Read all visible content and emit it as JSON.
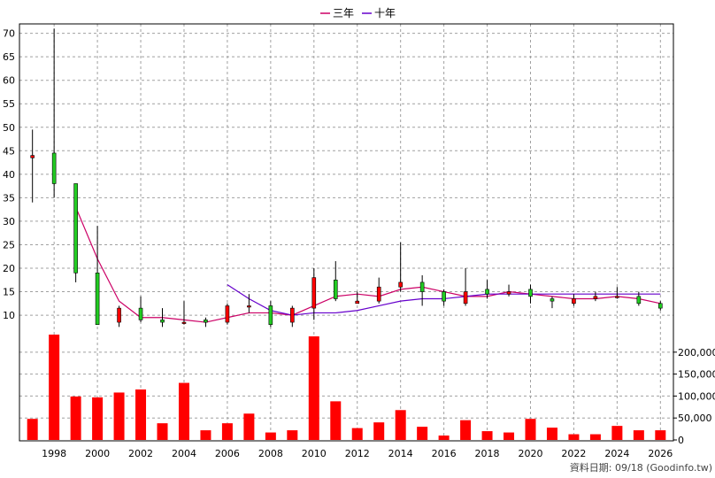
{
  "legend": [
    {
      "label": "三年",
      "color": "#cc0066"
    },
    {
      "label": "十年",
      "color": "#6600cc"
    }
  ],
  "footer": "資料日期: 09/18 (Goodinfo.tw)",
  "chart_data": [
    {
      "type": "candlestick",
      "x_range": [
        1996.4,
        2026.6
      ],
      "y_range": [
        7,
        72
      ],
      "y_ticks": [
        10,
        15,
        20,
        25,
        30,
        35,
        40,
        45,
        50,
        55,
        60,
        65,
        70
      ],
      "x_ticks": [
        "1998",
        "2000",
        "2002",
        "2004",
        "2006",
        "2008",
        "2010",
        "2012",
        "2014",
        "2016",
        "2018",
        "2020",
        "2022",
        "2024",
        "2026"
      ],
      "up_color": "#ff0000",
      "down_color": "#22cc22",
      "grid": true,
      "candles": [
        {
          "year": 1997,
          "open": 43.5,
          "close": 44.0,
          "high": 49.5,
          "low": 34.0
        },
        {
          "year": 1998,
          "open": 44.5,
          "close": 38.0,
          "high": 71.0,
          "low": 35.0
        },
        {
          "year": 1999,
          "open": 38.0,
          "close": 19.0,
          "high": 38.0,
          "low": 17.0
        },
        {
          "year": 2000,
          "open": 19.0,
          "close": 8.0,
          "high": 29.0,
          "low": 8.0
        },
        {
          "year": 2001,
          "open": 8.5,
          "close": 11.5,
          "high": 12.0,
          "low": 7.5
        },
        {
          "year": 2002,
          "open": 11.5,
          "close": 9.0,
          "high": 14.0,
          "low": 8.5
        },
        {
          "year": 2003,
          "open": 9.0,
          "close": 8.5,
          "high": 11.5,
          "low": 7.5
        },
        {
          "year": 2004,
          "open": 8.5,
          "close": 8.5,
          "high": 13.0,
          "low": 8.0
        },
        {
          "year": 2005,
          "open": 9.0,
          "close": 8.5,
          "high": 9.5,
          "low": 7.5
        },
        {
          "year": 2006,
          "open": 8.5,
          "close": 12.0,
          "high": 12.5,
          "low": 8.0
        },
        {
          "year": 2007,
          "open": 12.0,
          "close": 12.0,
          "high": 14.5,
          "low": 10.5
        },
        {
          "year": 2008,
          "open": 12.0,
          "close": 8.0,
          "high": 13.0,
          "low": 7.5
        },
        {
          "year": 2009,
          "open": 8.5,
          "close": 11.5,
          "high": 12.0,
          "low": 7.5
        },
        {
          "year": 2010,
          "open": 11.5,
          "close": 18.0,
          "high": 20.0,
          "low": 9.0
        },
        {
          "year": 2011,
          "open": 17.5,
          "close": 13.5,
          "high": 21.5,
          "low": 13.0
        },
        {
          "year": 2012,
          "open": 12.5,
          "close": 13.0,
          "high": 15.0,
          "low": 12.5
        },
        {
          "year": 2013,
          "open": 13.0,
          "close": 16.0,
          "high": 18.0,
          "low": 12.5
        },
        {
          "year": 2014,
          "open": 16.0,
          "close": 17.0,
          "high": 25.5,
          "low": 15.0
        },
        {
          "year": 2015,
          "open": 17.0,
          "close": 15.0,
          "high": 18.5,
          "low": 12.0
        },
        {
          "year": 2016,
          "open": 15.0,
          "close": 13.0,
          "high": 15.5,
          "low": 12.0
        },
        {
          "year": 2017,
          "open": 12.5,
          "close": 15.0,
          "high": 20.0,
          "low": 12.0
        },
        {
          "year": 2018,
          "open": 15.5,
          "close": 14.5,
          "high": 17.5,
          "low": 13.5
        },
        {
          "year": 2019,
          "open": 14.5,
          "close": 15.0,
          "high": 16.5,
          "low": 14.0
        },
        {
          "year": 2020,
          "open": 15.5,
          "close": 14.0,
          "high": 16.5,
          "low": 12.5
        },
        {
          "year": 2021,
          "open": 13.5,
          "close": 13.0,
          "high": 14.0,
          "low": 11.5
        },
        {
          "year": 2022,
          "open": 12.5,
          "close": 13.5,
          "high": 14.5,
          "low": 12.0
        },
        {
          "year": 2023,
          "open": 13.5,
          "close": 14.0,
          "high": 15.0,
          "low": 13.0
        },
        {
          "year": 2024,
          "open": 14.0,
          "close": 14.0,
          "high": 16.0,
          "low": 13.5
        },
        {
          "year": 2025,
          "open": 14.0,
          "close": 12.5,
          "high": 15.0,
          "low": 12.0
        },
        {
          "year": 2026,
          "open": 12.5,
          "close": 11.5,
          "high": 13.0,
          "low": 11.0
        }
      ],
      "series": [
        {
          "name": "三年",
          "color": "#cc0066",
          "points": [
            [
              1999,
              33.0
            ],
            [
              2000,
              22.0
            ],
            [
              2001,
              13.0
            ],
            [
              2002,
              9.5
            ],
            [
              2003,
              9.5
            ],
            [
              2004,
              9.0
            ],
            [
              2005,
              8.5
            ],
            [
              2006,
              9.5
            ],
            [
              2007,
              10.5
            ],
            [
              2008,
              10.5
            ],
            [
              2009,
              10.0
            ],
            [
              2010,
              12.0
            ],
            [
              2011,
              14.0
            ],
            [
              2012,
              14.5
            ],
            [
              2013,
              14.0
            ],
            [
              2014,
              15.5
            ],
            [
              2015,
              16.0
            ],
            [
              2016,
              15.0
            ],
            [
              2017,
              14.0
            ],
            [
              2018,
              14.0
            ],
            [
              2019,
              15.0
            ],
            [
              2020,
              14.5
            ],
            [
              2021,
              14.0
            ],
            [
              2022,
              13.5
            ],
            [
              2023,
              13.5
            ],
            [
              2024,
              14.0
            ],
            [
              2025,
              13.5
            ],
            [
              2026,
              12.5
            ]
          ]
        },
        {
          "name": "十年",
          "color": "#6600cc",
          "points": [
            [
              2006,
              16.5
            ],
            [
              2007,
              13.5
            ],
            [
              2008,
              11.0
            ],
            [
              2009,
              10.0
            ],
            [
              2010,
              10.5
            ],
            [
              2011,
              10.5
            ],
            [
              2012,
              11.0
            ],
            [
              2013,
              12.0
            ],
            [
              2014,
              13.0
            ],
            [
              2015,
              13.5
            ],
            [
              2016,
              13.5
            ],
            [
              2017,
              14.0
            ],
            [
              2018,
              14.5
            ],
            [
              2019,
              14.5
            ],
            [
              2020,
              14.5
            ],
            [
              2021,
              14.5
            ],
            [
              2022,
              14.5
            ],
            [
              2023,
              14.5
            ],
            [
              2024,
              14.5
            ],
            [
              2025,
              14.5
            ],
            [
              2026,
              14.5
            ]
          ]
        }
      ]
    },
    {
      "type": "bar",
      "y_range": [
        0,
        240000
      ],
      "y_ticks": [
        0,
        50000,
        100000,
        150000,
        200000
      ],
      "y_tick_labels": [
        "0",
        "50,000",
        "100,000",
        "150,000",
        "200,000"
      ],
      "bar_color": "#ff0000",
      "years": [
        1997,
        1998,
        1999,
        2000,
        2001,
        2002,
        2003,
        2004,
        2005,
        2006,
        2007,
        2008,
        2009,
        2010,
        2011,
        2012,
        2013,
        2014,
        2015,
        2016,
        2017,
        2018,
        2019,
        2020,
        2021,
        2022,
        2023,
        2024,
        2025,
        2026
      ],
      "values": [
        48000,
        240000,
        99000,
        97000,
        108000,
        115000,
        38000,
        130000,
        22000,
        38000,
        60000,
        17000,
        22000,
        236000,
        88000,
        27000,
        40000,
        68000,
        30000,
        10000,
        45000,
        20000,
        17000,
        48000,
        28000,
        13000,
        13000,
        32000,
        22000,
        22000
      ]
    }
  ]
}
